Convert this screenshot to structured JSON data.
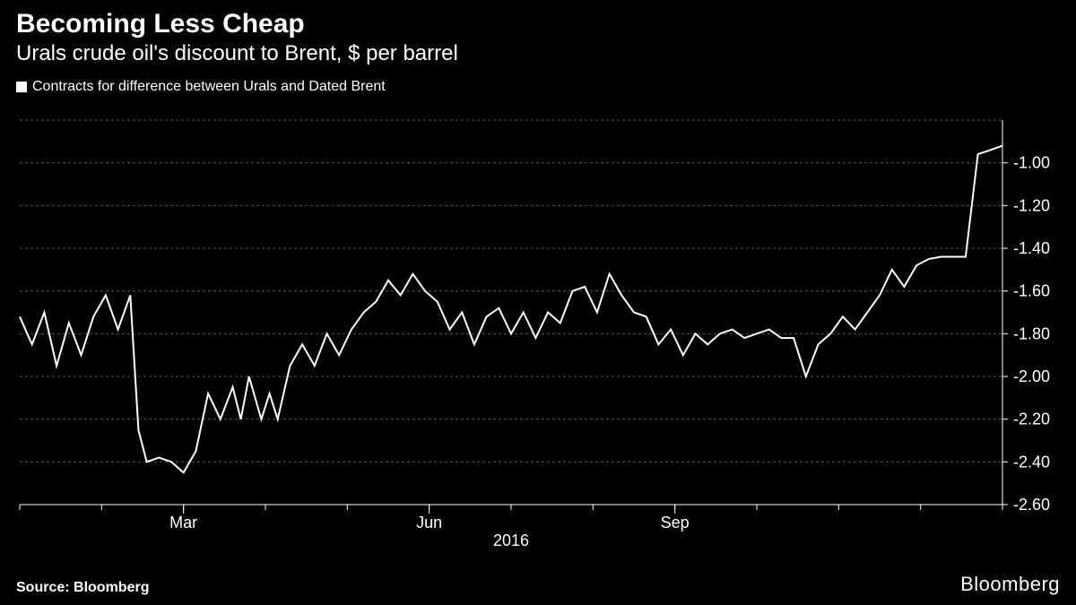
{
  "title": "Becoming Less Cheap",
  "subtitle": "Urals crude oil's discount to Brent, $ per barrel",
  "legend_label": "Contracts for difference between Urals and Dated Brent",
  "source": "Source: Bloomberg",
  "brand": "Bloomberg",
  "chart": {
    "type": "line",
    "background_color": "#000000",
    "series_color": "#ffffff",
    "grid_color": "#555555",
    "axis_color": "#ffffff",
    "text_color": "#ffffff",
    "tick_fontsize": 18,
    "grid_dash": "3 3",
    "line_width": 2,
    "ylim": [
      -2.6,
      -0.8
    ],
    "yticks": [
      -1.0,
      -1.2,
      -1.4,
      -1.6,
      -1.8,
      -2.0,
      -2.2,
      -2.4,
      -2.6
    ],
    "xlim": [
      0,
      240
    ],
    "x_axis_year": "2016",
    "x_month_ticks": [
      {
        "pos": 40,
        "label": "Mar"
      },
      {
        "pos": 100,
        "label": "Jun"
      },
      {
        "pos": 160,
        "label": "Sep"
      }
    ],
    "x_minor_ticks": [
      0,
      20,
      40,
      60,
      80,
      100,
      120,
      140,
      160,
      180,
      200,
      220,
      240
    ],
    "data": [
      [
        0,
        -1.72
      ],
      [
        3,
        -1.85
      ],
      [
        6,
        -1.7
      ],
      [
        9,
        -1.95
      ],
      [
        12,
        -1.75
      ],
      [
        15,
        -1.9
      ],
      [
        18,
        -1.72
      ],
      [
        21,
        -1.62
      ],
      [
        24,
        -1.78
      ],
      [
        27,
        -1.62
      ],
      [
        29,
        -2.25
      ],
      [
        31,
        -2.4
      ],
      [
        34,
        -2.38
      ],
      [
        37,
        -2.4
      ],
      [
        40,
        -2.45
      ],
      [
        43,
        -2.35
      ],
      [
        46,
        -2.08
      ],
      [
        49,
        -2.2
      ],
      [
        52,
        -2.05
      ],
      [
        54,
        -2.2
      ],
      [
        56,
        -2.0
      ],
      [
        59,
        -2.2
      ],
      [
        61,
        -2.08
      ],
      [
        63,
        -2.2
      ],
      [
        66,
        -1.95
      ],
      [
        69,
        -1.85
      ],
      [
        72,
        -1.95
      ],
      [
        75,
        -1.8
      ],
      [
        78,
        -1.9
      ],
      [
        81,
        -1.78
      ],
      [
        84,
        -1.7
      ],
      [
        87,
        -1.65
      ],
      [
        90,
        -1.55
      ],
      [
        93,
        -1.62
      ],
      [
        96,
        -1.52
      ],
      [
        99,
        -1.6
      ],
      [
        102,
        -1.65
      ],
      [
        105,
        -1.78
      ],
      [
        108,
        -1.7
      ],
      [
        111,
        -1.85
      ],
      [
        114,
        -1.72
      ],
      [
        117,
        -1.68
      ],
      [
        120,
        -1.8
      ],
      [
        123,
        -1.7
      ],
      [
        126,
        -1.82
      ],
      [
        129,
        -1.7
      ],
      [
        132,
        -1.75
      ],
      [
        135,
        -1.6
      ],
      [
        138,
        -1.58
      ],
      [
        141,
        -1.7
      ],
      [
        144,
        -1.52
      ],
      [
        147,
        -1.62
      ],
      [
        150,
        -1.7
      ],
      [
        153,
        -1.72
      ],
      [
        156,
        -1.85
      ],
      [
        159,
        -1.78
      ],
      [
        162,
        -1.9
      ],
      [
        165,
        -1.8
      ],
      [
        168,
        -1.85
      ],
      [
        171,
        -1.8
      ],
      [
        174,
        -1.78
      ],
      [
        177,
        -1.82
      ],
      [
        180,
        -1.8
      ],
      [
        183,
        -1.78
      ],
      [
        186,
        -1.82
      ],
      [
        189,
        -1.82
      ],
      [
        192,
        -2.0
      ],
      [
        195,
        -1.85
      ],
      [
        198,
        -1.8
      ],
      [
        201,
        -1.72
      ],
      [
        204,
        -1.78
      ],
      [
        207,
        -1.7
      ],
      [
        210,
        -1.62
      ],
      [
        213,
        -1.5
      ],
      [
        216,
        -1.58
      ],
      [
        219,
        -1.48
      ],
      [
        222,
        -1.45
      ],
      [
        225,
        -1.44
      ],
      [
        228,
        -1.44
      ],
      [
        231,
        -1.44
      ],
      [
        234,
        -0.96
      ],
      [
        237,
        -0.94
      ],
      [
        240,
        -0.92
      ]
    ]
  }
}
